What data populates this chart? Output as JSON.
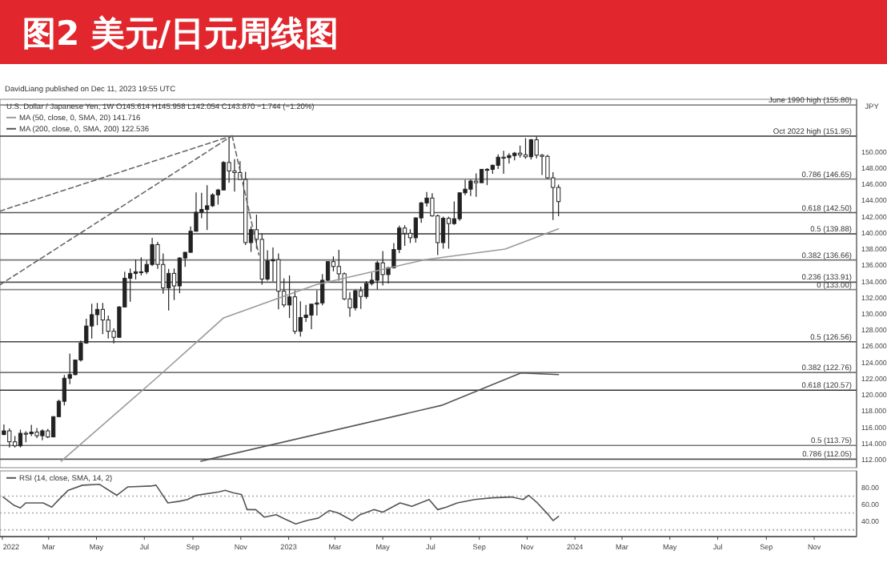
{
  "chart_data": [
    {
      "type": "candlestick",
      "title": "图2  美元/日元周线图",
      "subtitle": "DavidLiang published on Dec 11, 2023 19:55 UTC",
      "ylabel": "JPY",
      "color": "#222222",
      "legend": "top left",
      "tick_labels": "y",
      "annotations": [
        "U.S. Dollar / Japanese Yen, 1W  O145.614 H145.958 L142.054 C143.870 −1.744 (−1.20%)"
      ],
      "xlim": [
        "2021-12-29",
        "2024-12-25"
      ],
      "ylim": [
        111,
        156.5
      ],
      "yticks": [
        {
          "value": 112,
          "label": "112.000"
        },
        {
          "value": 114,
          "label": "114.000"
        },
        {
          "value": 116,
          "label": "116.000"
        },
        {
          "value": 118,
          "label": "118.000"
        },
        {
          "value": 120,
          "label": "120.000"
        },
        {
          "value": 122,
          "label": "122.000"
        },
        {
          "value": 124,
          "label": "124.000"
        },
        {
          "value": 126,
          "label": "126.000"
        },
        {
          "value": 128,
          "label": "128.000"
        },
        {
          "value": 130,
          "label": "130.000"
        },
        {
          "value": 132,
          "label": "132.000"
        },
        {
          "value": 134,
          "label": "134.000"
        },
        {
          "value": 136,
          "label": "136.000"
        },
        {
          "value": 138,
          "label": "138.000"
        },
        {
          "value": 140,
          "label": "140.000"
        },
        {
          "value": 142,
          "label": "142.000"
        },
        {
          "value": 144,
          "label": "144.000"
        },
        {
          "value": 146,
          "label": "146.000"
        },
        {
          "value": 148,
          "label": "148.000"
        },
        {
          "value": 150,
          "label": "150.000"
        }
      ],
      "x": [
        "2022-01-03",
        "2022-01-10",
        "2022-01-17",
        "2022-01-24",
        "2022-01-31",
        "2022-02-07",
        "2022-02-14",
        "2022-02-21",
        "2022-02-28",
        "2022-03-07",
        "2022-03-14",
        "2022-03-21",
        "2022-03-28",
        "2022-04-04",
        "2022-04-11",
        "2022-04-18",
        "2022-04-25",
        "2022-05-02",
        "2022-05-09",
        "2022-05-16",
        "2022-05-23",
        "2022-05-30",
        "2022-06-06",
        "2022-06-13",
        "2022-06-20",
        "2022-06-27",
        "2022-07-04",
        "2022-07-11",
        "2022-07-18",
        "2022-07-25",
        "2022-08-01",
        "2022-08-08",
        "2022-08-15",
        "2022-08-22",
        "2022-08-29",
        "2022-09-05",
        "2022-09-12",
        "2022-09-19",
        "2022-09-26",
        "2022-10-03",
        "2022-10-10",
        "2022-10-17",
        "2022-10-24",
        "2022-10-31",
        "2022-11-07",
        "2022-11-14",
        "2022-11-21",
        "2022-11-28",
        "2022-12-05",
        "2022-12-12",
        "2022-12-19",
        "2022-12-26",
        "2023-01-02",
        "2023-01-09",
        "2023-01-16",
        "2023-01-23",
        "2023-01-30",
        "2023-02-06",
        "2023-02-13",
        "2023-02-20",
        "2023-02-27",
        "2023-03-06",
        "2023-03-13",
        "2023-03-20",
        "2023-03-27",
        "2023-04-03",
        "2023-04-10",
        "2023-04-17",
        "2023-04-24",
        "2023-05-01",
        "2023-05-08",
        "2023-05-15",
        "2023-05-22",
        "2023-05-29",
        "2023-06-05",
        "2023-06-12",
        "2023-06-19",
        "2023-06-26",
        "2023-07-03",
        "2023-07-10",
        "2023-07-17",
        "2023-07-24",
        "2023-07-31",
        "2023-08-07",
        "2023-08-14",
        "2023-08-21",
        "2023-08-28",
        "2023-09-04",
        "2023-09-11",
        "2023-09-18",
        "2023-09-25",
        "2023-10-02",
        "2023-10-09",
        "2023-10-16",
        "2023-10-23",
        "2023-10-30",
        "2023-11-06",
        "2023-11-13",
        "2023-11-20",
        "2023-11-27",
        "2023-12-04",
        "2023-12-11"
      ],
      "ohlc": [
        [
          115.1,
          116.35,
          115.0,
          115.55
        ],
        [
          115.55,
          115.85,
          113.5,
          114.2
        ],
        [
          114.2,
          114.9,
          113.5,
          113.7
        ],
        [
          113.7,
          115.7,
          113.5,
          115.25
        ],
        [
          115.25,
          115.5,
          114.15,
          115.2
        ],
        [
          115.2,
          116.3,
          114.9,
          115.4
        ],
        [
          115.4,
          115.9,
          114.65,
          114.95
        ],
        [
          114.95,
          115.75,
          114.4,
          115.55
        ],
        [
          115.55,
          115.8,
          114.65,
          114.8
        ],
        [
          114.8,
          117.35,
          114.8,
          117.3
        ],
        [
          117.3,
          119.4,
          117.3,
          119.2
        ],
        [
          119.2,
          122.45,
          118.7,
          122.05
        ],
        [
          122.05,
          125.1,
          121.3,
          122.5
        ],
        [
          122.5,
          124.3,
          122.4,
          124.3
        ],
        [
          124.3,
          126.7,
          124.1,
          126.4
        ],
        [
          126.4,
          129.4,
          126.3,
          128.5
        ],
        [
          128.5,
          131.25,
          126.95,
          129.9
        ],
        [
          129.9,
          131.35,
          128.6,
          130.55
        ],
        [
          130.55,
          131.35,
          127.5,
          129.25
        ],
        [
          129.25,
          129.8,
          126.95,
          127.85
        ],
        [
          127.85,
          128.2,
          126.35,
          127.1
        ],
        [
          127.1,
          130.95,
          127.1,
          130.85
        ],
        [
          130.85,
          135.2,
          130.8,
          134.4
        ],
        [
          134.4,
          135.6,
          131.5,
          135.0
        ],
        [
          135.0,
          136.7,
          134.25,
          135.2
        ],
        [
          135.2,
          137.0,
          134.75,
          135.2
        ],
        [
          135.2,
          136.6,
          134.9,
          136.1
        ],
        [
          136.1,
          139.4,
          135.9,
          138.55
        ],
        [
          138.55,
          138.9,
          135.55,
          136.1
        ],
        [
          136.1,
          137.45,
          132.5,
          133.2
        ],
        [
          133.2,
          135.55,
          130.4,
          135.0
        ],
        [
          135.0,
          135.6,
          131.7,
          133.45
        ],
        [
          133.45,
          137.0,
          132.55,
          136.9
        ],
        [
          136.9,
          137.65,
          135.8,
          137.6
        ],
        [
          137.6,
          140.8,
          137.55,
          140.2
        ],
        [
          140.2,
          144.99,
          140.2,
          142.55
        ],
        [
          142.55,
          144.95,
          141.8,
          142.9
        ],
        [
          142.9,
          145.9,
          140.35,
          143.35
        ],
        [
          143.35,
          144.9,
          143.2,
          144.7
        ],
        [
          144.7,
          145.45,
          143.5,
          145.3
        ],
        [
          145.3,
          148.85,
          145.3,
          148.7
        ],
        [
          148.7,
          151.95,
          146.2,
          147.65
        ],
        [
          147.65,
          149.1,
          145.1,
          147.45
        ],
        [
          147.45,
          148.85,
          146.55,
          146.6
        ],
        [
          146.6,
          147.55,
          138.5,
          138.8
        ],
        [
          138.8,
          140.8,
          137.65,
          140.4
        ],
        [
          140.4,
          142.25,
          138.05,
          139.2
        ],
        [
          139.2,
          139.9,
          133.6,
          134.3
        ],
        [
          134.3,
          137.85,
          134.1,
          136.55
        ],
        [
          136.55,
          138.2,
          134.0,
          136.7
        ],
        [
          136.7,
          137.45,
          130.55,
          132.8
        ],
        [
          132.8,
          134.4,
          130.8,
          131.1
        ],
        [
          131.1,
          134.75,
          129.5,
          132.1
        ],
        [
          132.1,
          132.9,
          127.5,
          127.85
        ],
        [
          127.85,
          131.55,
          127.2,
          129.55
        ],
        [
          129.55,
          131.1,
          129.0,
          129.85
        ],
        [
          129.85,
          131.2,
          128.1,
          131.2
        ],
        [
          131.2,
          132.9,
          129.8,
          131.35
        ],
        [
          131.35,
          134.9,
          131.05,
          134.15
        ],
        [
          134.15,
          136.5,
          134.0,
          136.45
        ],
        [
          136.45,
          137.1,
          135.25,
          135.85
        ],
        [
          135.85,
          137.9,
          134.1,
          134.95
        ],
        [
          134.95,
          135.1,
          131.7,
          131.85
        ],
        [
          131.85,
          132.65,
          129.65,
          130.75
        ],
        [
          130.75,
          133.0,
          130.4,
          132.85
        ],
        [
          132.85,
          133.35,
          130.6,
          132.15
        ],
        [
          132.15,
          134.05,
          131.85,
          133.75
        ],
        [
          133.75,
          135.1,
          133.5,
          134.15
        ],
        [
          134.15,
          136.55,
          133.0,
          136.3
        ],
        [
          136.3,
          137.75,
          133.5,
          134.85
        ],
        [
          134.85,
          135.8,
          133.75,
          135.7
        ],
        [
          135.7,
          138.75,
          135.6,
          137.95
        ],
        [
          137.95,
          140.9,
          137.5,
          140.6
        ],
        [
          140.6,
          140.95,
          138.4,
          139.95
        ],
        [
          139.95,
          140.45,
          138.75,
          139.4
        ],
        [
          139.4,
          141.9,
          138.8,
          141.85
        ],
        [
          141.85,
          143.85,
          141.25,
          143.7
        ],
        [
          143.7,
          145.05,
          143.25,
          144.3
        ],
        [
          144.3,
          144.9,
          142.0,
          142.1
        ],
        [
          142.1,
          142.25,
          137.25,
          138.8
        ],
        [
          138.8,
          142.0,
          138.05,
          141.8
        ],
        [
          141.8,
          142.0,
          138.05,
          141.15
        ],
        [
          141.15,
          143.9,
          141.0,
          141.75
        ],
        [
          141.75,
          145.0,
          141.5,
          144.95
        ],
        [
          144.95,
          146.55,
          144.65,
          145.4
        ],
        [
          145.4,
          146.6,
          144.55,
          146.4
        ],
        [
          146.4,
          147.35,
          144.45,
          146.2
        ],
        [
          146.2,
          147.85,
          146.2,
          147.85
        ],
        [
          147.85,
          148.0,
          145.9,
          147.85
        ],
        [
          147.85,
          148.45,
          147.3,
          148.35
        ],
        [
          148.35,
          149.7,
          147.9,
          149.35
        ],
        [
          149.35,
          150.15,
          147.3,
          149.3
        ],
        [
          149.3,
          149.85,
          148.55,
          149.55
        ],
        [
          149.55,
          150.0,
          148.95,
          149.85
        ],
        [
          149.85,
          150.8,
          149.3,
          149.65
        ],
        [
          149.65,
          151.7,
          149.15,
          149.4
        ],
        [
          149.4,
          151.6,
          149.05,
          151.5
        ],
        [
          151.5,
          151.9,
          149.2,
          149.6
        ],
        [
          149.6,
          149.75,
          147.15,
          149.45
        ],
        [
          149.45,
          149.65,
          146.65,
          146.8
        ],
        [
          146.8,
          147.5,
          141.6,
          145.614
        ],
        [
          145.614,
          145.958,
          142.054,
          143.87
        ]
      ],
      "series": [
        {
          "type": "line",
          "name": "MA (50, close, 0, SMA, 20) 141.716",
          "color": "#9a9a9a",
          "x": [
            "2022-03-17",
            "2022-07-18",
            "2022-10-10",
            "2022-12-15",
            "2023-02-05",
            "2023-06-24",
            "2023-10-04",
            "2023-12-11"
          ],
          "values": [
            111.8,
            122.2,
            129.5,
            131.8,
            133.6,
            136.7,
            138,
            140.5
          ]
        },
        {
          "type": "line",
          "name": "MA (200, close, 0, SMA, 200) 122.536",
          "color": "#555555",
          "x": [
            "2022-09-11",
            "2023-07-15",
            "2023-10-24",
            "2023-12-11"
          ],
          "values": [
            111.8,
            118.7,
            122.7,
            122.5
          ]
        },
        {
          "type": "line",
          "color": "#666666",
          "line_style": "dashed",
          "x": [
            "2021-12-29",
            "2022-10-21"
          ],
          "values": [
            142.7,
            152
          ]
        },
        {
          "type": "line",
          "color": "#666666",
          "line_style": "dashed",
          "x": [
            "2021-12-29",
            "2022-10-21"
          ],
          "values": [
            133.6,
            152
          ]
        },
        {
          "type": "line",
          "color": "#666666",
          "line_style": "dashed",
          "x": [
            "2022-10-21",
            "2022-11-24"
          ],
          "values": [
            152,
            137.3
          ]
        }
      ],
      "ref_lines": [
        {
          "axis": "y",
          "value": 155.8,
          "label": "June 1990 high (155.80)",
          "color": "#888888"
        },
        {
          "axis": "y",
          "value": 151.95,
          "label": "Oct 2022 high (151.95)",
          "color": "#333333"
        },
        {
          "axis": "y",
          "value": 146.65,
          "label": "0.786 (146.65)",
          "color": "#888888"
        },
        {
          "axis": "y",
          "value": 142.5,
          "label": "0.618 (142.50)",
          "color": "#555555"
        },
        {
          "axis": "y",
          "value": 139.88,
          "label": "0.5 (139.88)",
          "color": "#333333"
        },
        {
          "axis": "y",
          "value": 136.66,
          "label": "0.382 (136.66)",
          "color": "#777777"
        },
        {
          "axis": "y",
          "value": 133.91,
          "label": "0.236 (133.91)",
          "color": "#555555"
        },
        {
          "axis": "y",
          "value": 133.0,
          "label": "0 (133.00)",
          "color": "#888888"
        },
        {
          "axis": "y",
          "value": 126.56,
          "label": "0.5 (126.56)",
          "color": "#444444"
        },
        {
          "axis": "y",
          "value": 122.76,
          "label": "0.382 (122.76)",
          "color": "#777777"
        },
        {
          "axis": "y",
          "value": 120.57,
          "label": "0.618 (120.57)",
          "color": "#333333"
        },
        {
          "axis": "y",
          "value": 113.75,
          "label": "0.5 (113.75)",
          "color": "#777777"
        },
        {
          "axis": "y",
          "value": 112.05,
          "label": "0.786 (112.05)",
          "color": "#555555"
        }
      ]
    },
    {
      "type": "line",
      "legend": "top left",
      "xlim": [
        "2021-12-29",
        "2024-12-25"
      ],
      "ylim": [
        22,
        100
      ],
      "xticks": [
        {
          "value": "2022-01-01",
          "label": "2022"
        },
        {
          "value": "2022-03-01",
          "label": "Mar"
        },
        {
          "value": "2022-05-01",
          "label": "May"
        },
        {
          "value": "2022-07-01",
          "label": "Jul"
        },
        {
          "value": "2022-09-01",
          "label": "Sep"
        },
        {
          "value": "2022-11-01",
          "label": "Nov"
        },
        {
          "value": "2023-01-01",
          "label": "2023"
        },
        {
          "value": "2023-03-01",
          "label": "Mar"
        },
        {
          "value": "2023-05-01",
          "label": "May"
        },
        {
          "value": "2023-07-01",
          "label": "Jul"
        },
        {
          "value": "2023-09-01",
          "label": "Sep"
        },
        {
          "value": "2023-11-01",
          "label": "Nov"
        },
        {
          "value": "2024-01-01",
          "label": "2024"
        },
        {
          "value": "2024-03-01",
          "label": "Mar"
        },
        {
          "value": "2024-05-01",
          "label": "May"
        },
        {
          "value": "2024-07-01",
          "label": "Jul"
        },
        {
          "value": "2024-09-01",
          "label": "Sep"
        },
        {
          "value": "2024-11-01",
          "label": "Nov"
        }
      ],
      "yticks": [
        {
          "value": 40,
          "label": "40.00"
        },
        {
          "value": 60,
          "label": "60.00"
        },
        {
          "value": 80,
          "label": "80.00"
        }
      ],
      "ref_lines": [
        {
          "axis": "y",
          "value": 70,
          "color": "#aaaaaa",
          "line_style": "dotted"
        },
        {
          "axis": "y",
          "value": 50,
          "color": "#aaaaaa",
          "line_style": "dotted"
        },
        {
          "axis": "y",
          "value": 30,
          "color": "#aaaaaa",
          "line_style": "dotted"
        }
      ],
      "series": [
        {
          "name": "RSI (14, close, SMA, 14, 2)",
          "color": "#555555",
          "x": [
            "2022-01-02",
            "2022-01-16",
            "2022-01-24",
            "2022-01-31",
            "2022-02-22",
            "2022-03-05",
            "2022-03-12",
            "2022-03-26",
            "2022-04-13",
            "2022-05-05",
            "2022-05-20",
            "2022-05-27",
            "2022-06-10",
            "2022-07-09",
            "2022-07-16",
            "2022-07-31",
            "2022-08-15",
            "2022-08-25",
            "2022-09-05",
            "2022-10-04",
            "2022-10-12",
            "2022-10-22",
            "2022-11-02",
            "2022-11-09",
            "2022-11-20",
            "2022-12-01",
            "2022-12-16",
            "2022-12-27",
            "2023-01-10",
            "2023-01-24",
            "2023-02-08",
            "2023-02-22",
            "2023-03-05",
            "2023-03-23",
            "2023-04-02",
            "2023-04-20",
            "2023-05-01",
            "2023-05-23",
            "2023-06-07",
            "2023-06-29",
            "2023-07-10",
            "2023-07-21",
            "2023-08-04",
            "2023-08-26",
            "2023-09-17",
            "2023-10-12",
            "2023-10-27",
            "2023-11-03",
            "2023-11-14",
            "2023-11-27",
            "2023-12-04",
            "2023-12-11"
          ],
          "values": [
            69,
            59,
            56,
            62,
            62,
            57,
            64,
            77,
            83,
            84,
            75,
            71,
            81,
            82,
            83,
            62,
            64,
            66,
            71,
            75,
            77,
            74,
            72,
            54,
            54,
            45,
            48,
            43,
            37,
            41,
            44,
            53,
            50,
            41,
            48,
            54,
            51,
            62,
            58,
            66,
            54,
            57,
            62,
            66,
            68,
            69,
            66,
            71,
            62,
            49,
            41,
            46
          ]
        }
      ]
    }
  ]
}
